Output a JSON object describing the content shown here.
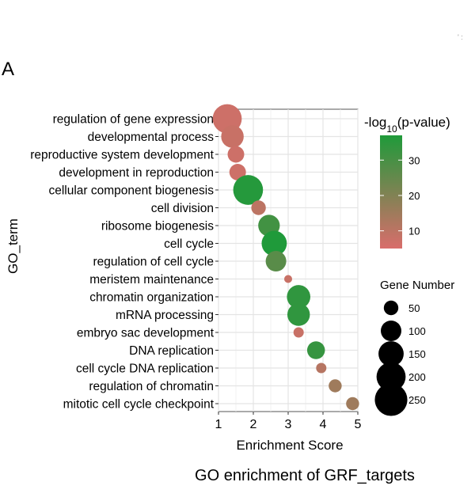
{
  "panel_label": "A",
  "corner_mark": "' :",
  "chart_data": {
    "type": "scatter",
    "title": "GO enrichment  of GRF_targets",
    "xlabel": "Enrichment  Score",
    "ylabel": "GO_term",
    "xlim": [
      1,
      5
    ],
    "xticks": [
      1,
      2,
      3,
      4,
      5
    ],
    "grid": true,
    "color_legend": {
      "title_prefix": "-log",
      "title_sub": "10",
      "title_suffix": "(p-value)",
      "range": [
        5,
        37
      ],
      "ticks": [
        10,
        20,
        30
      ],
      "low_color": "#d96d6b",
      "high_color": "#1f9a3a"
    },
    "size_legend": {
      "title": "Gene Number",
      "values": [
        50,
        100,
        150,
        200,
        250
      ]
    },
    "points": [
      {
        "term": "regulation of gene expression",
        "x": 1.25,
        "gene_number": 200,
        "neg_log10_p": 7
      },
      {
        "term": "developmental process",
        "x": 1.4,
        "gene_number": 120,
        "neg_log10_p": 8
      },
      {
        "term": "reproductive system development",
        "x": 1.5,
        "gene_number": 65,
        "neg_log10_p": 7
      },
      {
        "term": "development in reproduction",
        "x": 1.55,
        "gene_number": 65,
        "neg_log10_p": 7
      },
      {
        "term": "cellular component biogenesis",
        "x": 1.85,
        "gene_number": 210,
        "neg_log10_p": 36
      },
      {
        "term": "cell division",
        "x": 2.15,
        "gene_number": 50,
        "neg_log10_p": 10
      },
      {
        "term": "ribosome biogenesis",
        "x": 2.45,
        "gene_number": 110,
        "neg_log10_p": 31
      },
      {
        "term": "cell cycle",
        "x": 2.6,
        "gene_number": 150,
        "neg_log10_p": 37
      },
      {
        "term": "regulation of cell cycle",
        "x": 2.65,
        "gene_number": 100,
        "neg_log10_p": 27
      },
      {
        "term": "meristem maintenance",
        "x": 3.0,
        "gene_number": 15,
        "neg_log10_p": 8
      },
      {
        "term": "chromatin organization",
        "x": 3.3,
        "gene_number": 130,
        "neg_log10_p": 34
      },
      {
        "term": "mRNA processing",
        "x": 3.3,
        "gene_number": 120,
        "neg_log10_p": 34
      },
      {
        "term": "embryo sac development",
        "x": 3.3,
        "gene_number": 25,
        "neg_log10_p": 8
      },
      {
        "term": "DNA replication",
        "x": 3.8,
        "gene_number": 75,
        "neg_log10_p": 33
      },
      {
        "term": "cell cycle DNA replication",
        "x": 3.95,
        "gene_number": 25,
        "neg_log10_p": 11
      },
      {
        "term": "regulation of chromatin",
        "x": 4.35,
        "gene_number": 40,
        "neg_log10_p": 15
      },
      {
        "term": "mitotic cell cycle checkpoint",
        "x": 4.85,
        "gene_number": 40,
        "neg_log10_p": 15
      }
    ]
  }
}
